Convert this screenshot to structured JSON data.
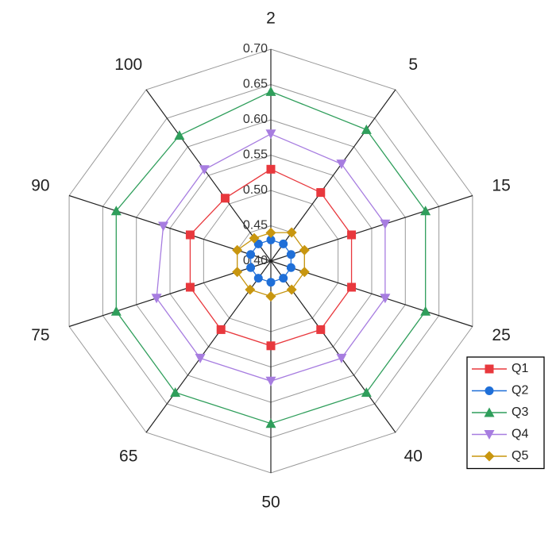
{
  "chart_data": {
    "type": "radar",
    "categories": [
      "2",
      "5",
      "15",
      "25",
      "40",
      "50",
      "65",
      "75",
      "90",
      "100"
    ],
    "ylim": [
      0.4,
      0.7
    ],
    "yticks": [
      {
        "value": 0.4,
        "label": "0.40"
      },
      {
        "value": 0.45,
        "label": "0.45"
      },
      {
        "value": 0.5,
        "label": "0.50"
      },
      {
        "value": 0.55,
        "label": "0.55"
      },
      {
        "value": 0.6,
        "label": "0.60"
      },
      {
        "value": 0.65,
        "label": "0.65"
      },
      {
        "value": 0.7,
        "label": "0.70"
      }
    ],
    "grid": true,
    "legend": "bottom-right",
    "series": [
      {
        "name": "Q1",
        "color": "#e8383d",
        "marker": "square",
        "values": [
          0.53,
          0.52,
          0.52,
          0.52,
          0.52,
          0.52,
          0.52,
          0.52,
          0.52,
          0.51
        ]
      },
      {
        "name": "Q2",
        "color": "#1f6fd8",
        "marker": "circle",
        "values": [
          0.43,
          0.43,
          0.43,
          0.43,
          0.43,
          0.43,
          0.43,
          0.43,
          0.43,
          0.43
        ]
      },
      {
        "name": "Q3",
        "color": "#2f9e5b",
        "marker": "triangle-up",
        "values": [
          0.64,
          0.63,
          0.63,
          0.63,
          0.63,
          0.63,
          0.63,
          0.63,
          0.63,
          0.62
        ]
      },
      {
        "name": "Q4",
        "color": "#a77de0",
        "marker": "triangle-down",
        "values": [
          0.58,
          0.57,
          0.57,
          0.57,
          0.57,
          0.57,
          0.57,
          0.57,
          0.56,
          0.56
        ]
      },
      {
        "name": "Q5",
        "color": "#c8960f",
        "marker": "diamond",
        "values": [
          0.44,
          0.45,
          0.45,
          0.45,
          0.45,
          0.45,
          0.45,
          0.45,
          0.45,
          0.44
        ]
      }
    ]
  }
}
